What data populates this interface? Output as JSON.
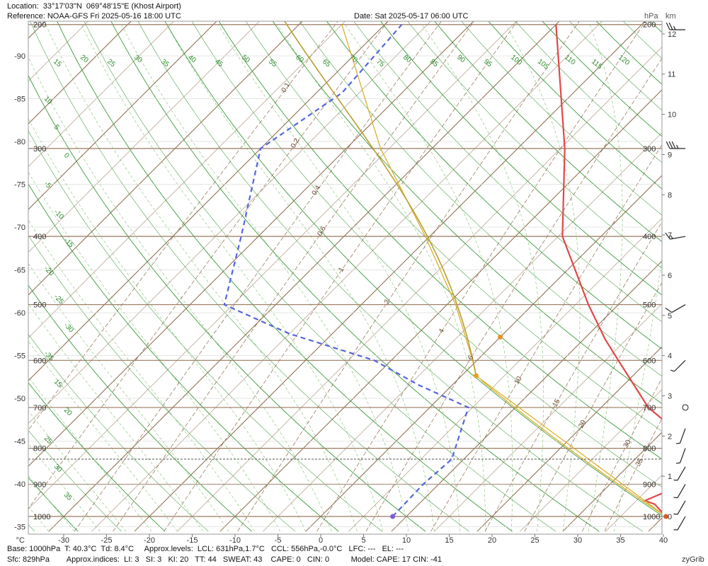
{
  "header": {
    "location": "Location:  33°17'03\"N  069°48'15\"E (Khost Airport)",
    "reference": "Reference: NOAA-GFS Fri 2025-05-16 18:00 UTC",
    "date": "Date: Sat 2025-05-17 06:00 UTC",
    "unit_hpa": "hPa",
    "unit_km": "km"
  },
  "footer": {
    "line1": "Base: 1000hPa  T: 40.3°C  Td: 8.4°C     Approx.levels:  LCL: 631hPa,1.7°C   CCL: 556hPa,-0.0°C   LFC: ---   EL: ---",
    "line2": "Sfc: 829hPa        Approx.indices:  LI: 3   SI: 3   KI: 20   TT: 44   SWEAT: 43    CAPE: 0   CIN: 0          Model: CAPE: 17 CIN: -41",
    "brand": "zyGrib"
  },
  "chart_data": {
    "type": "line",
    "x_label": "°C",
    "x_ticks": [
      -30,
      -25,
      -20,
      -15,
      -10,
      -5,
      0,
      5,
      10,
      15,
      20,
      25,
      30,
      35,
      40
    ],
    "xlim": [
      -35,
      40
    ],
    "left_axis_ticks": [
      -90,
      -85,
      -80,
      -75,
      -70,
      -65,
      -60,
      -55,
      -50,
      -45,
      -40,
      -35
    ],
    "pressure_levels": [
      200,
      300,
      400,
      500,
      600,
      700,
      800,
      900,
      1000
    ],
    "height_km_ticks": [
      0,
      1,
      2,
      3,
      4,
      5,
      6,
      7,
      8,
      9,
      10,
      11,
      12
    ],
    "surface_pressure_hpa": 829,
    "dry_adiabat_labels": [
      15,
      20,
      25,
      30,
      35,
      40,
      45,
      50,
      55,
      60,
      65,
      70,
      75,
      80,
      85,
      90,
      95,
      100,
      105,
      110,
      115,
      120
    ],
    "moist_adiabat_labels": [
      10,
      5,
      0,
      -5,
      -10,
      -15,
      -20,
      -25,
      -30,
      -35,
      15,
      20,
      25,
      30,
      35
    ],
    "mixing_ratio_labels": [
      0.1,
      0.2,
      0.4,
      0.6,
      1,
      2,
      4,
      6,
      10,
      15,
      20,
      30,
      35
    ],
    "series": [
      {
        "name": "Temperature",
        "color": "#e04848",
        "points": [
          [
            1000,
            40.3
          ],
          [
            960,
            37.5
          ],
          [
            950,
            36.0
          ],
          [
            900,
            38.5
          ],
          [
            829,
            40.3
          ],
          [
            800,
            36.0
          ],
          [
            700,
            25.5
          ],
          [
            600,
            16.5
          ],
          [
            560,
            12.5
          ],
          [
            500,
            6.5
          ],
          [
            400,
            -4.5
          ],
          [
            300,
            -14.5
          ],
          [
            200,
            -30.0
          ]
        ]
      },
      {
        "name": "Dew point",
        "color": "#5566dd",
        "points": [
          [
            1000,
            8.4
          ],
          [
            900,
            8.2
          ],
          [
            829,
            8.6
          ],
          [
            700,
            4.5
          ],
          [
            650,
            -4.0
          ],
          [
            600,
            -12.0
          ],
          [
            550,
            -25.0
          ],
          [
            500,
            -36.0
          ],
          [
            400,
            -42.0
          ],
          [
            300,
            -50.0
          ],
          [
            250,
            -47.0
          ],
          [
            200,
            -48.0
          ]
        ]
      },
      {
        "name": "Parcel",
        "color": "#d9b030",
        "points": [
          [
            1000,
            40.3
          ],
          [
            631,
            1.7
          ],
          [
            600,
            -0.5
          ],
          [
            500,
            -9.0
          ],
          [
            400,
            -20.5
          ],
          [
            300,
            -36.0
          ],
          [
            200,
            -55.0
          ]
        ]
      }
    ],
    "markers": [
      {
        "name": "LCL",
        "pressure_hpa": 631,
        "temp_c": 1.7,
        "color": "#e8a020"
      },
      {
        "name": "CCL",
        "pressure_hpa": 556,
        "temp_c": 0.0,
        "color": "#e89020"
      },
      {
        "name": "Surface dew point",
        "pressure_hpa": 1000,
        "temp_c": 8.4,
        "color": "#7a5fd0"
      },
      {
        "name": "Surface temperature",
        "pressure_hpa": 1000,
        "temp_c": 40.3,
        "color": "#e05a20"
      }
    ],
    "wind_barbs": [
      {
        "pressure_hpa": 200,
        "speed_kt": 25,
        "direction_deg": 270
      },
      {
        "pressure_hpa": 300,
        "speed_kt": 35,
        "direction_deg": 270
      },
      {
        "pressure_hpa": 400,
        "speed_kt": 15,
        "direction_deg": 260
      },
      {
        "pressure_hpa": 500,
        "speed_kt": 10,
        "direction_deg": 240
      },
      {
        "pressure_hpa": 600,
        "speed_kt": 5,
        "direction_deg": 225
      },
      {
        "pressure_hpa": 700,
        "speed_kt": 0,
        "direction_deg": 0
      },
      {
        "pressure_hpa": 750,
        "speed_kt": 5,
        "direction_deg": 200
      },
      {
        "pressure_hpa": 800,
        "speed_kt": 5,
        "direction_deg": 200
      },
      {
        "pressure_hpa": 850,
        "speed_kt": 5,
        "direction_deg": 210
      },
      {
        "pressure_hpa": 900,
        "speed_kt": 5,
        "direction_deg": 210
      },
      {
        "pressure_hpa": 950,
        "speed_kt": 5,
        "direction_deg": 210
      },
      {
        "pressure_hpa": 1000,
        "speed_kt": 5,
        "direction_deg": 210
      }
    ]
  }
}
